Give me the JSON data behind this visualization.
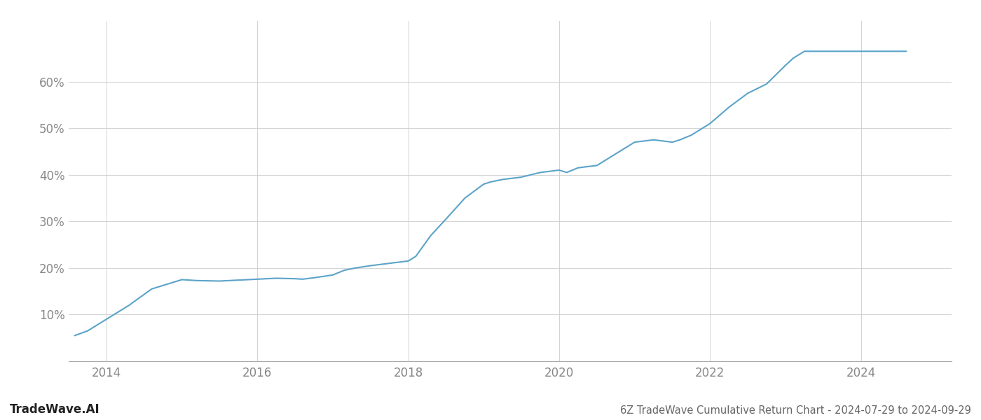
{
  "title": "6Z TradeWave Cumulative Return Chart - 2024-07-29 to 2024-09-29",
  "watermark": "TradeWave.AI",
  "line_color": "#5ba3c9",
  "background_color": "#ffffff",
  "grid_color": "#cccccc",
  "x_values": [
    2013.58,
    2013.75,
    2014.0,
    2014.3,
    2014.6,
    2014.9,
    2015.0,
    2015.2,
    2015.5,
    2015.75,
    2016.0,
    2016.25,
    2016.5,
    2016.6,
    2016.75,
    2017.0,
    2017.15,
    2017.3,
    2017.5,
    2017.75,
    2018.0,
    2018.1,
    2018.3,
    2018.5,
    2018.75,
    2019.0,
    2019.1,
    2019.25,
    2019.5,
    2019.75,
    2020.0,
    2020.1,
    2020.25,
    2020.5,
    2020.75,
    2021.0,
    2021.25,
    2021.5,
    2021.6,
    2021.75,
    2022.0,
    2022.25,
    2022.5,
    2022.75,
    2023.0,
    2023.1,
    2023.25,
    2023.4,
    2023.75,
    2024.0,
    2024.6
  ],
  "y_values": [
    5.5,
    6.5,
    9.0,
    12.0,
    15.5,
    17.0,
    17.5,
    17.3,
    17.2,
    17.4,
    17.6,
    17.8,
    17.7,
    17.6,
    17.9,
    18.5,
    19.5,
    20.0,
    20.5,
    21.0,
    21.5,
    22.5,
    27.0,
    30.5,
    35.0,
    38.0,
    38.5,
    39.0,
    39.5,
    40.5,
    41.0,
    40.5,
    41.5,
    42.0,
    44.5,
    47.0,
    47.5,
    47.0,
    47.5,
    48.5,
    51.0,
    54.5,
    57.5,
    59.5,
    63.5,
    65.0,
    66.5,
    66.5,
    66.5,
    66.5,
    66.5
  ],
  "xlim": [
    2013.5,
    2025.2
  ],
  "ylim": [
    0,
    73
  ],
  "yticks": [
    10,
    20,
    30,
    40,
    50,
    60
  ],
  "xticks": [
    2014,
    2016,
    2018,
    2020,
    2022,
    2024
  ],
  "line_width": 1.5,
  "tick_color": "#888888",
  "tick_fontsize": 12,
  "footer_fontsize": 10.5,
  "watermark_fontsize": 12
}
